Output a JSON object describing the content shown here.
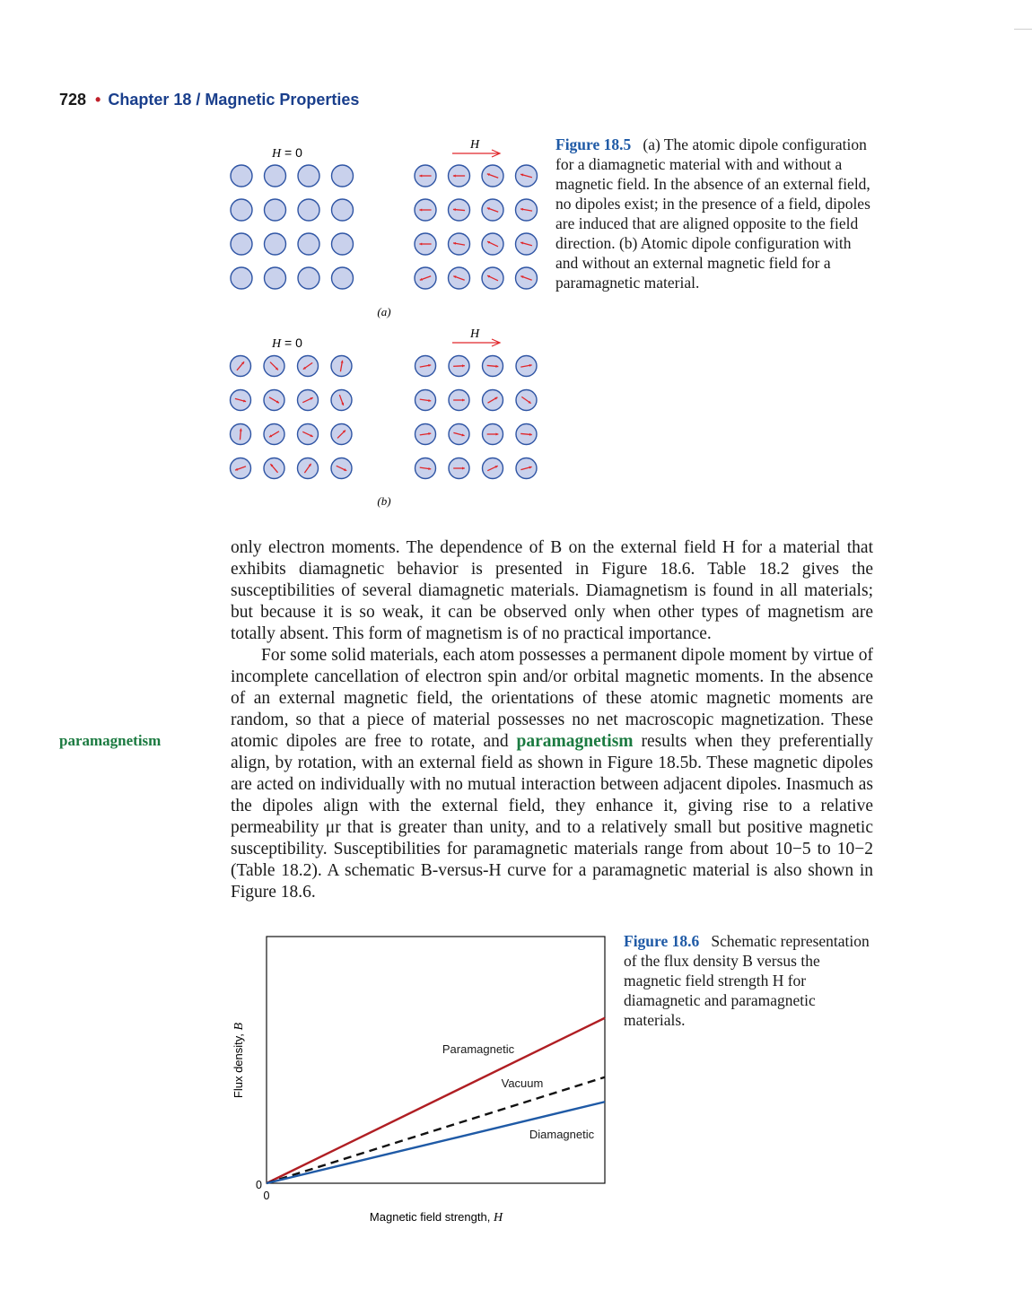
{
  "header": {
    "page_number": "728",
    "bullet": "•",
    "chapter": "Chapter 18 / Magnetic Properties"
  },
  "figure_18_5": {
    "panel_a": {
      "left_label_var": "H",
      "left_label_rest": " = 0",
      "right_label": "H",
      "sublabel": "(a)",
      "right_arrow_angles": [
        180,
        180,
        200,
        195,
        180,
        185,
        200,
        190,
        180,
        190,
        205,
        195,
        160,
        200,
        205,
        200
      ]
    },
    "panel_b": {
      "left_label_var": "H",
      "left_label_rest": " = 0",
      "right_label": "H",
      "sublabel": "(b)",
      "left_arrow_angles": [
        -50,
        45,
        145,
        -80,
        15,
        30,
        -25,
        70,
        -85,
        150,
        25,
        -45,
        160,
        -130,
        -55,
        25
      ],
      "right_arrow_angles": [
        -10,
        -3,
        5,
        -10,
        8,
        0,
        -30,
        35,
        -8,
        15,
        0,
        5,
        8,
        0,
        -25,
        -15
      ]
    },
    "caption": {
      "label": "Figure 18.5",
      "text": "(a) The atomic dipole configuration for a diamagnetic material with and without a magnetic field. In the absence of an external field, no dipoles exist; in the presence of a field, dipoles are induced that are aligned opposite to the field direction. (b) Atomic dipole configuration with and without an external magnetic field for a paramagnetic material."
    },
    "colors": {
      "circle_fill": "#c9d1ec",
      "circle_stroke": "#2f55a4",
      "arrow": "#e0262a",
      "field_arrow": "#e0262a"
    }
  },
  "body": {
    "p1": "only electron moments. The dependence of B on the external field H for a material that exhibits diamagnetic behavior is presented in Figure 18.6. Table 18.2 gives the susceptibilities of several diamagnetic materials. Diamagnetism is found in all materials; but because it is so weak, it can be observed only when other types of magnetism are totally absent. This form of magnetism is of no practical importance.",
    "p2_before": "For some solid materials, each atom possesses a permanent dipole moment by virtue of incomplete cancellation of electron spin and/or orbital magnetic moments. In the absence of an external magnetic field, the orientations of these atomic magnetic moments are random, so that a piece of material possesses no net macroscopic magnetization. These atomic dipoles are free to rotate, and ",
    "p2_term": "paramagnetism",
    "p2_after": " results when they preferentially align, by rotation, with an external field as shown in Figure 18.5b. These magnetic dipoles are acted on individually with no mutual interaction between adjacent dipoles. Inasmuch as the dipoles align with the external field, they enhance it, giving rise to a relative permeability μr that is greater than unity, and to a relatively small but positive magnetic susceptibility. Susceptibilities for paramagnetic materials range from about 10−5 to 10−2 (Table 18.2). A schematic B-versus-H curve for a paramagnetic material is also shown in Figure 18.6."
  },
  "margin_term": "paramagnetism",
  "figure_18_6": {
    "caption": {
      "label": "Figure 18.6",
      "text": "Schematic representation of the flux density B versus the magnetic field strength H for diamagnetic and paramagnetic materials."
    },
    "chart_data": {
      "type": "line",
      "xlabel": "Magnetic field strength, H",
      "ylabel": "Flux density, B",
      "x_tick_labels": [
        "0"
      ],
      "y_tick_labels": [
        "0"
      ],
      "xlim": [
        0,
        1
      ],
      "ylim": [
        0,
        1
      ],
      "series": [
        {
          "name": "Paramagnetic",
          "x": [
            0,
            1
          ],
          "y": [
            0,
            0.67
          ],
          "color": "#b01e23",
          "style": "solid"
        },
        {
          "name": "Vacuum",
          "x": [
            0,
            1
          ],
          "y": [
            0,
            0.43
          ],
          "color": "#111111",
          "style": "dashed"
        },
        {
          "name": "Diamagnetic",
          "x": [
            0,
            1
          ],
          "y": [
            0,
            0.33
          ],
          "color": "#1f5aa6",
          "style": "solid"
        }
      ],
      "grid": false,
      "legend": "inline"
    }
  }
}
